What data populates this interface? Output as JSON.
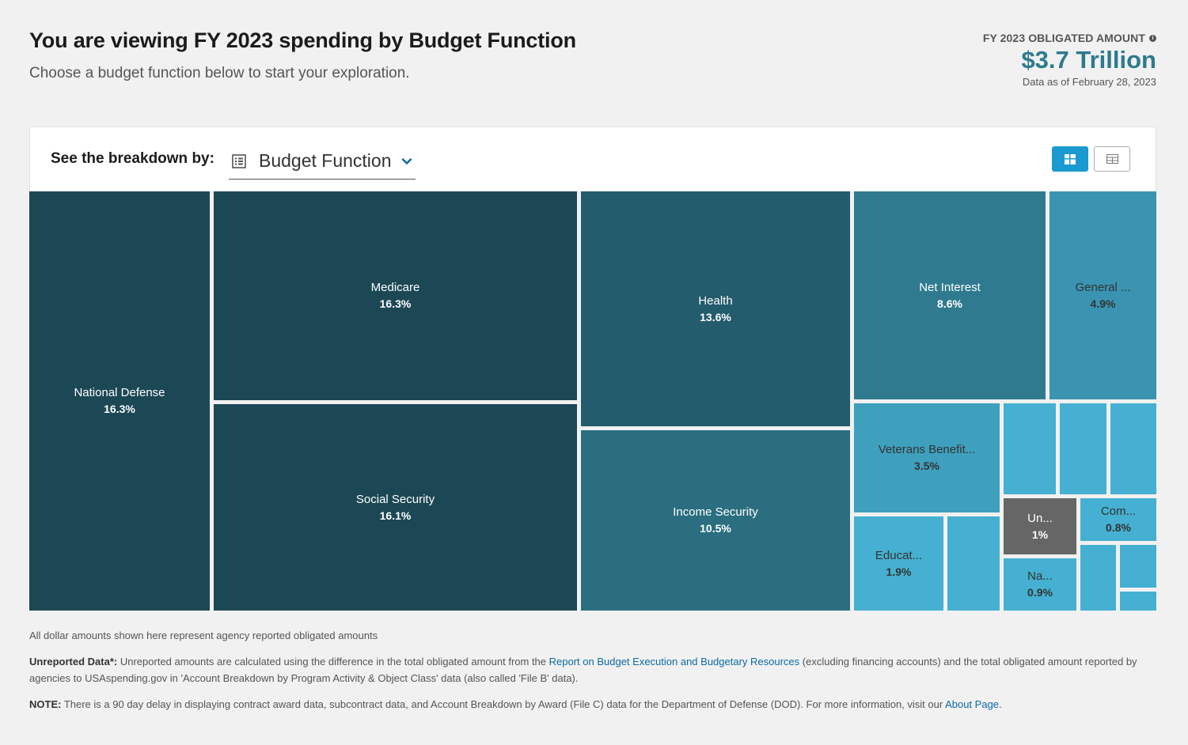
{
  "header": {
    "title": "You are viewing FY 2023 spending by Budget Function",
    "subtitle": "Choose a budget function below to start your exploration."
  },
  "amount": {
    "label": "FY 2023 OBLIGATED AMOUNT",
    "value": "$3.7 Trillion",
    "as_of": "Data as of February 28, 2023"
  },
  "controls": {
    "breakdown_label": "See the breakdown by:",
    "dropdown_value": "Budget Function",
    "icons": [
      "list-icon",
      "chevron-down-icon",
      "treemap-view-icon",
      "table-view-icon"
    ]
  },
  "treemap": {
    "items": [
      {
        "name": "National Defense",
        "pct": "16.3%"
      },
      {
        "name": "Medicare",
        "pct": "16.3%"
      },
      {
        "name": "Social Security",
        "pct": "16.1%"
      },
      {
        "name": "Health",
        "pct": "13.6%"
      },
      {
        "name": "Income Security",
        "pct": "10.5%"
      },
      {
        "name": "Net Interest",
        "pct": "8.6%"
      },
      {
        "name": "General ...",
        "pct": "4.9%"
      },
      {
        "name": "Veterans Benefit...",
        "pct": "3.5%"
      },
      {
        "name": "Educat...",
        "pct": "1.9%"
      },
      {
        "name": "Un...",
        "pct": "1%"
      },
      {
        "name": "Com...",
        "pct": "0.8%"
      },
      {
        "name": "Na...",
        "pct": "0.9%"
      }
    ],
    "colors": {
      "darkest": "#1c4855",
      "dark": "#235c6c",
      "mid_dark": "#2a6e80",
      "mid": "#2f7a8f",
      "mid_light": "#3a94b1",
      "light": "#3ea0bd",
      "lightest": "#45b0d1",
      "unreported": "#666666"
    }
  },
  "footer": {
    "note1": "All dollar amounts shown here represent agency reported obligated amounts",
    "unreported_label": "Unreported Data*:",
    "unreported_text_a": " Unreported amounts are calculated using the difference in the total obligated amount from the ",
    "unreported_link": "Report on Budget Execution and Budgetary Resources",
    "unreported_text_b": " (excluding financing accounts) and the total obligated amount reported by agencies to USAspending.gov in 'Account Breakdown by Program Activity & Object Class' data (also called 'File B' data).",
    "note_label": "NOTE:",
    "note_text": " There is a 90 day delay in displaying contract award data, subcontract data, and Account Breakdown by Award (File C) data for the Department of Defense (DOD). For more information, visit our ",
    "note_link": "About Page",
    "note_end": "."
  }
}
